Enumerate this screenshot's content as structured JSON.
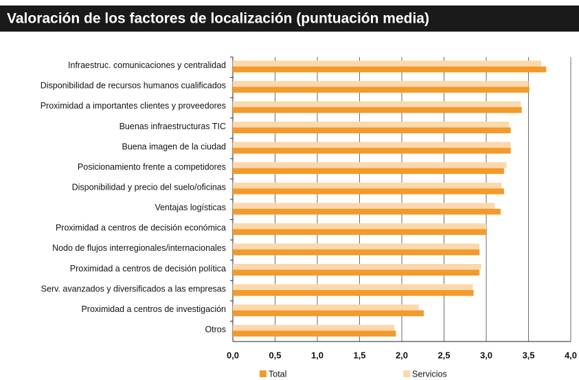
{
  "chart_data": {
    "type": "bar",
    "orientation": "horizontal",
    "title": "Valoración de los factores de localización (puntuación media)",
    "categories": [
      "Infraestruc. comunicaciones y centralidad",
      "Disponibilidad de recursos humanos cualificados",
      "Proximidad a importantes clientes y proveedores",
      "Buenas infraestructuras TIC",
      "Buena imagen de la ciudad",
      "Posicionamiento frente a competidores",
      "Disponibilidad y precio del suelo/oficinas",
      "Ventajas logísticas",
      "Proximidad a centros de decisión económica",
      "Nodo de flujos interregionales/internacionales",
      "Proximidad a centros de decisión política",
      "Serv. avanzados y diversificados a las empresas",
      "Proximidad a centros de investigación",
      "Otros"
    ],
    "series": [
      {
        "name": "Servicios",
        "color": "#fcd8ad",
        "values": [
          3.65,
          3.5,
          3.41,
          3.27,
          3.29,
          3.24,
          3.18,
          3.1,
          3.0,
          2.92,
          2.94,
          2.84,
          2.2,
          1.91
        ]
      },
      {
        "name": "Total",
        "color": "#f39a2b",
        "values": [
          3.71,
          3.51,
          3.42,
          3.29,
          3.29,
          3.21,
          3.21,
          3.17,
          3.0,
          2.92,
          2.92,
          2.85,
          2.26,
          1.93
        ]
      }
    ],
    "xlim": [
      0,
      4
    ],
    "xticks": [
      {
        "value": 0,
        "label": "0,0"
      },
      {
        "value": 0.5,
        "label": "0,5"
      },
      {
        "value": 1,
        "label": "1,0"
      },
      {
        "value": 1.5,
        "label": "1,5"
      },
      {
        "value": 2,
        "label": "2,0"
      },
      {
        "value": 2.5,
        "label": "2,5"
      },
      {
        "value": 3,
        "label": "3,0"
      },
      {
        "value": 3.5,
        "label": "3,5"
      },
      {
        "value": 4,
        "label": "4,0"
      }
    ],
    "grid": true,
    "legend": "bottom"
  }
}
